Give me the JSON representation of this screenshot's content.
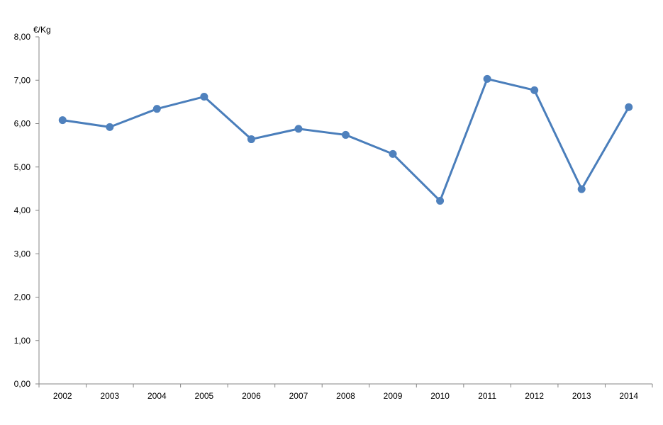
{
  "chart_data": {
    "type": "line",
    "title": "",
    "ylabel": "€/Kg",
    "xlabel": "",
    "ylim": [
      0,
      8
    ],
    "yticks": [
      0,
      1,
      2,
      3,
      4,
      5,
      6,
      7,
      8
    ],
    "ytick_labels": [
      "0,00",
      "1,00",
      "2,00",
      "3,00",
      "4,00",
      "5,00",
      "6,00",
      "7,00",
      "8,00"
    ],
    "categories": [
      "2002",
      "2003",
      "2004",
      "2005",
      "2006",
      "2007",
      "2008",
      "2009",
      "2010",
      "2011",
      "2012",
      "2013",
      "2014"
    ],
    "series": [
      {
        "values": [
          6.08,
          5.92,
          6.34,
          6.62,
          5.64,
          5.88,
          5.74,
          5.3,
          4.22,
          7.03,
          6.77,
          4.49,
          6.38
        ]
      }
    ],
    "grid": false,
    "legend": "none",
    "colors": {
      "line": "#4a7ebb",
      "marker": "#4f81bd",
      "axis": "#868686"
    }
  }
}
